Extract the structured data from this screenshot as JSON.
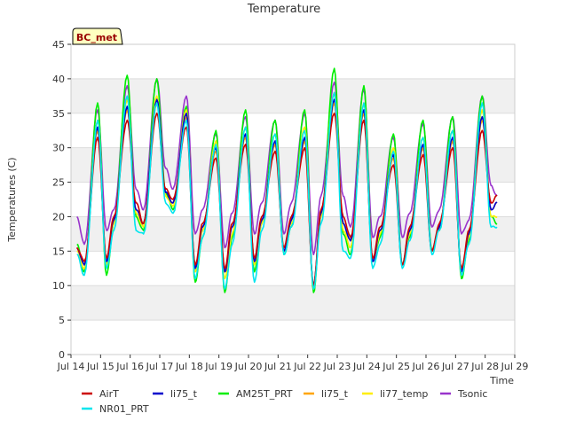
{
  "chart_data": {
    "type": "line",
    "title": "Temperature",
    "xlabel": "Time",
    "ylabel": "Temperatures (C)",
    "badge": "BC_met",
    "ylim": [
      0,
      45
    ],
    "yticks": [
      0,
      5,
      10,
      15,
      20,
      25,
      30,
      35,
      40,
      45
    ],
    "xlim": [
      14,
      29
    ],
    "xticks": [
      {
        "v": 14,
        "label": "Jul 14"
      },
      {
        "v": 15,
        "label": "Jul 15"
      },
      {
        "v": 16,
        "label": "Jul 16"
      },
      {
        "v": 17,
        "label": "Jul 17"
      },
      {
        "v": 18,
        "label": "Jul 18"
      },
      {
        "v": 19,
        "label": "Jul 19"
      },
      {
        "v": 20,
        "label": "Jul 20"
      },
      {
        "v": 21,
        "label": "Jul 21"
      },
      {
        "v": 22,
        "label": "Jul 22"
      },
      {
        "v": 23,
        "label": "Jul 23"
      },
      {
        "v": 24,
        "label": "Jul 24"
      },
      {
        "v": 25,
        "label": "Jul 25"
      },
      {
        "v": 26,
        "label": "Jul 26"
      },
      {
        "v": 27,
        "label": "Jul 27"
      },
      {
        "v": 28,
        "label": "Jul 28"
      },
      {
        "v": 29,
        "label": "Jul 29"
      }
    ],
    "grid": true,
    "legend_position": "bottom",
    "series": [
      {
        "name": "AirT",
        "color": "#cc0000",
        "x": [
          14.2,
          14.45,
          14.9,
          15.2,
          15.45,
          15.9,
          16.2,
          16.45,
          16.9,
          17.2,
          17.45,
          17.9,
          18.2,
          18.45,
          18.9,
          19.2,
          19.45,
          19.9,
          20.2,
          20.45,
          20.9,
          21.2,
          21.45,
          21.9,
          22.2,
          22.45,
          22.9,
          23.2,
          23.45,
          23.9,
          24.2,
          24.45,
          24.9,
          25.2,
          25.45,
          25.9,
          26.2,
          26.45,
          26.9,
          27.2,
          27.45,
          27.9,
          28.2,
          28.4
        ],
        "y": [
          15.5,
          13.5,
          31.5,
          14.0,
          20.0,
          34.0,
          22.0,
          19.0,
          35.0,
          24.0,
          22.5,
          33.0,
          13.0,
          19.0,
          28.5,
          12.5,
          19.0,
          30.5,
          14.0,
          20.0,
          29.5,
          15.5,
          20.0,
          30.0,
          10.0,
          21.0,
          35.0,
          20.0,
          17.0,
          34.0,
          14.0,
          18.5,
          27.5,
          13.0,
          18.5,
          29.0,
          15.0,
          19.0,
          30.0,
          12.5,
          18.0,
          32.5,
          22.0,
          23.0
        ]
      },
      {
        "name": "NR01_PRT",
        "color": "#00e5ee",
        "x": [
          14.2,
          14.45,
          14.9,
          15.2,
          15.45,
          15.9,
          16.2,
          16.45,
          16.9,
          17.2,
          17.45,
          17.9,
          18.2,
          18.45,
          18.9,
          19.2,
          19.45,
          19.9,
          20.2,
          20.45,
          20.9,
          21.2,
          21.45,
          21.9,
          22.2,
          22.45,
          22.9,
          23.2,
          23.45,
          23.9,
          24.2,
          24.45,
          24.9,
          25.2,
          25.45,
          25.9,
          26.2,
          26.45,
          26.9,
          27.2,
          27.45,
          27.9,
          28.2,
          28.4
        ],
        "y": [
          14.5,
          11.5,
          34.0,
          12.5,
          18.0,
          37.5,
          18.0,
          17.5,
          36.5,
          22.0,
          20.5,
          34.0,
          11.0,
          17.0,
          30.5,
          9.5,
          16.0,
          33.0,
          10.5,
          18.0,
          32.0,
          14.5,
          18.5,
          32.5,
          9.5,
          19.0,
          38.0,
          15.0,
          14.0,
          36.5,
          12.5,
          16.0,
          29.5,
          12.5,
          16.5,
          31.5,
          14.5,
          18.0,
          32.5,
          11.5,
          16.0,
          36.5,
          18.5,
          18.5
        ]
      },
      {
        "name": "li75_t",
        "color": "#0000cc",
        "x": [
          14.2,
          14.45,
          14.9,
          15.2,
          15.45,
          15.9,
          16.2,
          16.45,
          16.9,
          17.2,
          17.45,
          17.9,
          18.2,
          18.45,
          18.9,
          19.2,
          19.45,
          19.9,
          20.2,
          20.45,
          20.9,
          21.2,
          21.45,
          21.9,
          22.2,
          22.45,
          22.9,
          23.2,
          23.45,
          23.9,
          24.2,
          24.45,
          24.9,
          25.2,
          25.45,
          25.9,
          26.2,
          26.45,
          26.9,
          27.2,
          27.45,
          27.9,
          28.2,
          28.4
        ],
        "y": [
          15.5,
          13.0,
          33.0,
          13.5,
          19.5,
          36.0,
          21.0,
          19.0,
          37.0,
          23.5,
          22.0,
          35.0,
          12.5,
          18.5,
          30.0,
          12.0,
          18.5,
          32.0,
          13.5,
          19.5,
          31.0,
          15.0,
          19.5,
          31.5,
          10.0,
          20.5,
          37.0,
          19.0,
          16.5,
          35.5,
          13.5,
          18.0,
          29.0,
          13.0,
          18.0,
          30.5,
          15.0,
          18.5,
          31.5,
          12.0,
          17.5,
          34.5,
          21.0,
          22.0
        ]
      },
      {
        "name": "AM25T_PRT",
        "color": "#00ee00",
        "x": [
          14.2,
          14.45,
          14.9,
          15.2,
          15.45,
          15.9,
          16.2,
          16.45,
          16.9,
          17.2,
          17.45,
          17.9,
          18.2,
          18.45,
          18.9,
          19.2,
          19.45,
          19.9,
          20.2,
          20.45,
          20.9,
          21.2,
          21.45,
          21.9,
          22.2,
          22.45,
          22.9,
          23.2,
          23.45,
          23.9,
          24.2,
          24.45,
          24.9,
          25.2,
          25.45,
          25.9,
          26.2,
          26.45,
          26.9,
          27.2,
          27.45,
          27.9,
          28.2,
          28.4
        ],
        "y": [
          16.0,
          12.0,
          36.5,
          11.5,
          19.0,
          40.5,
          20.0,
          18.0,
          40.0,
          23.5,
          21.0,
          36.0,
          10.5,
          17.0,
          32.5,
          9.0,
          17.0,
          35.5,
          12.0,
          19.0,
          34.0,
          14.5,
          18.5,
          35.5,
          9.0,
          20.0,
          41.5,
          17.5,
          14.5,
          39.0,
          13.5,
          17.0,
          32.0,
          13.0,
          17.0,
          34.0,
          15.0,
          18.0,
          34.5,
          11.0,
          16.5,
          37.5,
          20.0,
          19.0
        ]
      },
      {
        "name": "li75_t",
        "color": "#ffa500",
        "x": [
          14.2,
          14.45,
          14.9,
          15.2,
          15.45,
          15.9,
          16.2,
          16.45,
          16.9,
          17.2,
          17.45,
          17.9,
          18.2,
          18.45,
          18.9,
          19.2,
          19.45,
          19.9,
          20.2,
          20.45,
          20.9,
          21.2,
          21.45,
          21.9,
          22.2,
          22.45,
          22.9,
          23.2,
          23.45,
          23.9,
          24.2,
          24.45,
          24.9,
          25.2,
          25.45,
          25.9,
          26.2,
          26.45,
          26.9,
          27.2,
          27.45,
          27.9,
          28.2,
          28.4
        ],
        "y": [
          15.5,
          13.0,
          32.5,
          13.5,
          19.5,
          35.5,
          21.0,
          19.0,
          36.5,
          23.5,
          22.0,
          34.5,
          12.5,
          18.5,
          29.5,
          12.0,
          18.5,
          31.5,
          13.5,
          19.5,
          30.5,
          15.0,
          19.5,
          31.0,
          10.0,
          20.5,
          36.5,
          19.0,
          16.5,
          35.0,
          13.5,
          18.0,
          28.5,
          13.0,
          18.0,
          30.0,
          15.0,
          18.5,
          31.0,
          12.0,
          17.5,
          34.0,
          21.0,
          22.0
        ]
      },
      {
        "name": "li77_temp",
        "color": "#ffee00",
        "x": [
          14.2,
          14.45,
          14.9,
          15.2,
          15.45,
          15.9,
          16.2,
          16.45,
          16.9,
          17.2,
          17.45,
          17.9,
          18.2,
          18.45,
          18.9,
          19.2,
          19.45,
          19.9,
          20.2,
          20.45,
          20.9,
          21.2,
          21.45,
          21.9,
          22.2,
          22.45,
          22.9,
          23.2,
          23.45,
          23.9,
          24.2,
          24.45,
          24.9,
          25.2,
          25.45,
          25.9,
          26.2,
          26.45,
          26.9,
          27.2,
          27.45,
          27.9,
          28.2,
          28.4
        ],
        "y": [
          15.0,
          12.5,
          34.0,
          13.0,
          19.0,
          37.0,
          20.5,
          18.5,
          37.5,
          23.0,
          21.5,
          35.5,
          12.0,
          18.0,
          31.0,
          11.0,
          17.5,
          33.0,
          13.0,
          19.0,
          32.0,
          15.0,
          19.0,
          33.0,
          9.5,
          20.0,
          38.0,
          18.0,
          15.5,
          36.5,
          13.5,
          17.5,
          30.0,
          13.0,
          17.5,
          31.5,
          15.0,
          18.5,
          32.5,
          11.5,
          17.0,
          35.5,
          20.0,
          20.0
        ]
      },
      {
        "name": "Tsonic",
        "color": "#9933cc",
        "x": [
          14.2,
          14.45,
          14.9,
          15.2,
          15.45,
          15.9,
          16.2,
          16.45,
          16.9,
          17.2,
          17.45,
          17.9,
          18.2,
          18.45,
          18.9,
          19.2,
          19.45,
          19.9,
          20.2,
          20.45,
          20.9,
          21.2,
          21.45,
          21.9,
          22.2,
          22.45,
          22.9,
          23.2,
          23.45,
          23.9,
          24.2,
          24.45,
          24.9,
          25.2,
          25.45,
          25.9,
          26.2,
          26.45,
          26.9,
          27.2,
          27.45,
          27.9,
          28.2,
          28.4
        ],
        "y": [
          20.0,
          16.0,
          35.5,
          18.0,
          21.0,
          39.0,
          24.0,
          21.0,
          40.0,
          27.0,
          24.0,
          37.5,
          17.5,
          21.0,
          32.0,
          15.5,
          20.5,
          34.5,
          17.5,
          22.0,
          34.0,
          17.5,
          22.0,
          35.0,
          14.5,
          23.0,
          39.5,
          23.0,
          18.5,
          38.5,
          17.0,
          20.0,
          31.5,
          17.0,
          20.5,
          33.5,
          18.5,
          21.0,
          34.5,
          17.5,
          19.5,
          37.5,
          24.5,
          23.0
        ]
      }
    ]
  }
}
